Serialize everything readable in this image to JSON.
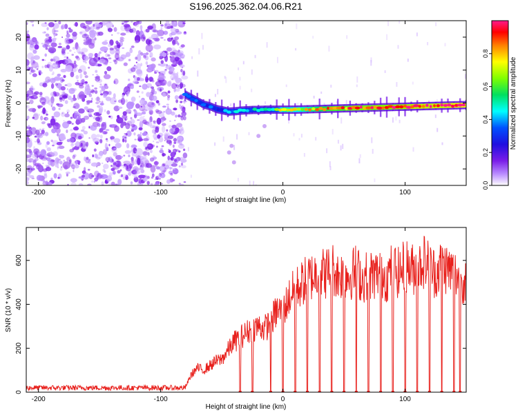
{
  "title": "S196.2025.362.04.06.R21",
  "colors": {
    "snr_line": "#e8201c",
    "spectrogram_purple": "#7a1de8",
    "axis": "#000000"
  },
  "chart_data": [
    {
      "type": "heatmap",
      "title": "S196.2025.362.04.06.R21",
      "xlabel": "Height of straight line (km)",
      "ylabel": "Frequency (Hz)",
      "xlim": [
        -210,
        150
      ],
      "ylim": [
        -25,
        25
      ],
      "xticks": [
        -200,
        -100,
        0,
        100
      ],
      "xtick_labels": [
        "-200",
        "-100",
        "0",
        "100"
      ],
      "yticks": [
        -20,
        -10,
        0,
        10,
        20
      ],
      "ytick_labels": [
        "-20",
        "-10",
        "0",
        "10",
        "20"
      ],
      "noise_region_end_km": -80,
      "signal_track": {
        "x": [
          -80,
          -75,
          -70,
          -65,
          -60,
          -55,
          -50,
          -45,
          -40,
          -35,
          -30,
          -25,
          -20,
          -15,
          -10,
          -5,
          0,
          10,
          20,
          30,
          40,
          50,
          60,
          70,
          80,
          90,
          100,
          110,
          120,
          130,
          140,
          150
        ],
        "y": [
          2.5,
          1.5,
          0.5,
          -0.5,
          -1.0,
          -1.8,
          -2.2,
          -2.6,
          -2.5,
          -2.3,
          -2.2,
          -2.1,
          -2.1,
          -2.0,
          -2.0,
          -2.0,
          -2.0,
          -2.0,
          -1.9,
          -1.8,
          -1.7,
          -1.6,
          -1.5,
          -1.4,
          -1.3,
          -1.2,
          -1.1,
          -1.0,
          -0.9,
          -0.8,
          -0.7,
          -0.6
        ],
        "intensity": [
          0.3,
          0.3,
          0.35,
          0.35,
          0.35,
          0.3,
          0.3,
          0.4,
          0.4,
          0.4,
          0.4,
          0.45,
          0.5,
          0.5,
          0.55,
          0.6,
          0.75,
          0.7,
          0.75,
          0.8,
          0.85,
          0.85,
          0.9,
          0.88,
          0.9,
          0.9,
          0.92,
          0.95,
          0.95,
          0.95,
          0.98,
          0.98
        ]
      },
      "colorbar": {
        "label": "Normalized spectral amplitude",
        "range": [
          0,
          1
        ],
        "ticks": [
          0.0,
          0.2,
          0.4,
          0.6,
          0.8
        ],
        "tick_labels": [
          "0.0",
          "0.2",
          "0.4",
          "0.6",
          "0.8"
        ]
      }
    },
    {
      "type": "line",
      "xlabel": "Height of straight line (km)",
      "ylabel": "SNR (10 * v/v)",
      "xlim": [
        -210,
        150
      ],
      "ylim": [
        0,
        750
      ],
      "xticks": [
        -200,
        -100,
        0,
        100
      ],
      "xtick_labels": [
        "-200",
        "-100",
        "0",
        "100"
      ],
      "yticks": [
        0,
        200,
        400,
        600
      ],
      "ytick_labels": [
        "0",
        "200",
        "400",
        "600"
      ],
      "series": [
        {
          "name": "SNR",
          "x": [
            -210,
            -200,
            -190,
            -180,
            -170,
            -160,
            -150,
            -140,
            -130,
            -120,
            -110,
            -100,
            -90,
            -80,
            -75,
            -70,
            -65,
            -60,
            -55,
            -50,
            -45,
            -40,
            -35,
            -30,
            -25,
            -20,
            -15,
            -10,
            -5,
            0,
            5,
            10,
            15,
            20,
            25,
            30,
            35,
            40,
            45,
            50,
            55,
            60,
            65,
            70,
            75,
            80,
            85,
            90,
            95,
            100,
            105,
            110,
            115,
            120,
            125,
            130,
            135,
            140,
            145,
            150
          ],
          "values": [
            20,
            20,
            20,
            20,
            20,
            20,
            20,
            20,
            20,
            20,
            20,
            20,
            20,
            20,
            80,
            110,
            100,
            120,
            140,
            150,
            190,
            230,
            250,
            270,
            290,
            300,
            290,
            320,
            370,
            370,
            430,
            470,
            490,
            520,
            530,
            550,
            540,
            570,
            530,
            540,
            530,
            560,
            510,
            540,
            530,
            550,
            520,
            570,
            540,
            580,
            560,
            560,
            600,
            570,
            540,
            580,
            560,
            540,
            520,
            510
          ]
        }
      ],
      "dropouts_km": [
        -35,
        -25,
        -10,
        0,
        10,
        20,
        30,
        40,
        50,
        60,
        70,
        80,
        90,
        100,
        110,
        120,
        130,
        140,
        145
      ]
    }
  ]
}
